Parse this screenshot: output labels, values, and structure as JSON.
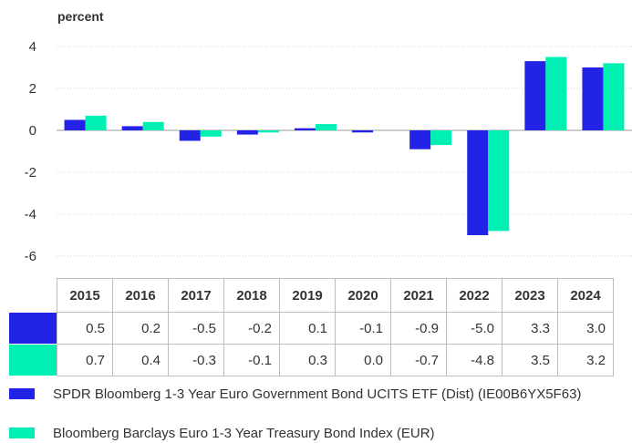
{
  "chart_data": {
    "type": "bar",
    "ylabel": "percent",
    "ylim": [
      -6,
      4
    ],
    "yticks": [
      -6,
      -4,
      -2,
      0,
      2,
      4
    ],
    "grid": true,
    "categories": [
      "2015",
      "2016",
      "2017",
      "2018",
      "2019",
      "2020",
      "2021",
      "2022",
      "2023",
      "2024"
    ],
    "series": [
      {
        "name": "SPDR Bloomberg 1-3 Year Euro Government Bond UCITS ETF (Dist) (IE00B6YX5F63)",
        "color": "#2323e6",
        "values": [
          0.5,
          0.2,
          -0.5,
          -0.2,
          0.1,
          -0.1,
          -0.9,
          -5.0,
          3.3,
          3.0
        ],
        "labels": [
          "0.5",
          "0.2",
          "-0.5",
          "-0.2",
          "0.1",
          "-0.1",
          "-0.9",
          "-5.0",
          "3.3",
          "3.0"
        ]
      },
      {
        "name": "Bloomberg Barclays Euro 1-3 Year Treasury Bond Index (EUR)",
        "color": "#00f0b4",
        "values": [
          0.7,
          0.4,
          -0.3,
          -0.1,
          0.3,
          0.0,
          -0.7,
          -4.8,
          3.5,
          3.2
        ],
        "labels": [
          "0.7",
          "0.4",
          "-0.3",
          "-0.1",
          "0.3",
          "0.0",
          "-0.7",
          "-4.8",
          "3.5",
          "3.2"
        ]
      }
    ]
  }
}
